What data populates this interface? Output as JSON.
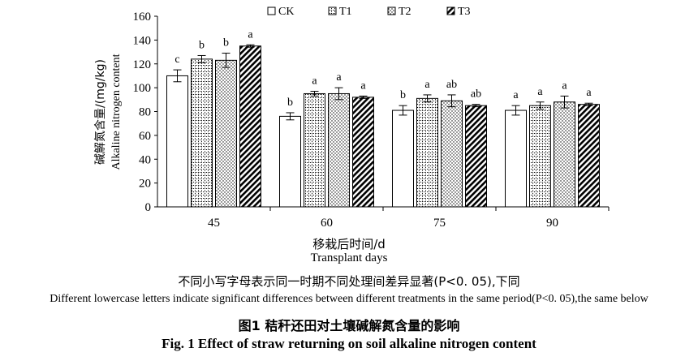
{
  "chart_data": {
    "type": "bar",
    "categories": [
      "45",
      "60",
      "75",
      "90"
    ],
    "series": [
      {
        "name": "CK",
        "values": [
          110,
          76,
          81,
          81
        ],
        "errors": [
          5,
          3,
          4,
          4
        ],
        "labels": [
          "c",
          "b",
          "b",
          "a"
        ],
        "pattern": "plain"
      },
      {
        "name": "T1",
        "values": [
          124,
          95,
          91,
          85
        ],
        "errors": [
          3,
          2,
          3,
          3
        ],
        "labels": [
          "b",
          "a",
          "a",
          "a"
        ],
        "pattern": "grid"
      },
      {
        "name": "T2",
        "values": [
          123,
          95,
          89,
          88
        ],
        "errors": [
          6,
          5,
          5,
          5
        ],
        "labels": [
          "b",
          "a",
          "ab",
          "a"
        ],
        "pattern": "dots"
      },
      {
        "name": "T3",
        "values": [
          135,
          92,
          85,
          86
        ],
        "errors": [
          1,
          1,
          1,
          1
        ],
        "labels": [
          "a",
          "a",
          "ab",
          "a"
        ],
        "pattern": "diag"
      }
    ],
    "ylim": [
      0,
      160
    ],
    "yticks": [
      0,
      20,
      40,
      60,
      80,
      100,
      120,
      140,
      160
    ],
    "ylabel_zh": "碱解氮含量/(mg/kg)",
    "ylabel_en": "Alkaline nitrogen content",
    "xlabel_zh": "移栽后时间/d",
    "xlabel_en": "Transplant days",
    "legend_position": "top"
  },
  "caption": {
    "note_zh": "不同小写字母表示同一时期不同处理间差异显著(P<0. 05),下同",
    "note_en": "Different lowercase letters indicate significant differences between different treatments in the same period(P<0. 05),the same  below",
    "fig_zh": "图1   秸秆还田对土壤碱解氮含量的影响",
    "fig_en": "Fig. 1    Effect of straw returning on soil alkaline nitrogen content"
  }
}
